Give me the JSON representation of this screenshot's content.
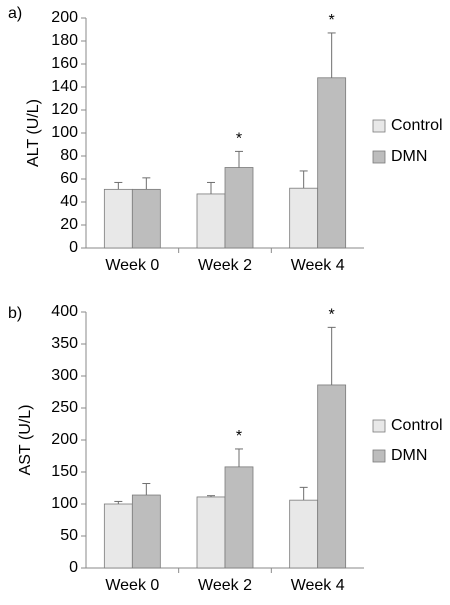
{
  "chart_data": [
    {
      "panel_label": "a)",
      "type": "bar",
      "categories": [
        "Week 0",
        "Week 2",
        "Week 4"
      ],
      "series": [
        {
          "name": "Control",
          "values": [
            51,
            47,
            52
          ],
          "errors": [
            6,
            10,
            15
          ],
          "color": "#e8e8e8"
        },
        {
          "name": "DMN",
          "values": [
            51,
            70,
            148
          ],
          "errors": [
            10,
            14,
            39
          ],
          "color": "#bdbdbd"
        }
      ],
      "significance": [
        {
          "category": "Week 2",
          "series": "DMN",
          "mark": "*"
        },
        {
          "category": "Week 4",
          "series": "DMN",
          "mark": "*"
        }
      ],
      "ylabel": "ALT (U/L)",
      "ylim": [
        0,
        200
      ],
      "yticks": [
        0,
        20,
        40,
        60,
        80,
        100,
        120,
        140,
        160,
        180,
        200
      ],
      "grid": false,
      "legend": "right"
    },
    {
      "panel_label": "b)",
      "type": "bar",
      "categories": [
        "Week 0",
        "Week 2",
        "Week 4"
      ],
      "series": [
        {
          "name": "Control",
          "values": [
            100,
            111,
            106
          ],
          "errors": [
            4,
            2,
            20
          ],
          "color": "#e8e8e8"
        },
        {
          "name": "DMN",
          "values": [
            114,
            158,
            286
          ],
          "errors": [
            18,
            28,
            90
          ],
          "color": "#bdbdbd"
        }
      ],
      "significance": [
        {
          "category": "Week 2",
          "series": "DMN",
          "mark": "*"
        },
        {
          "category": "Week 4",
          "series": "DMN",
          "mark": "*"
        }
      ],
      "ylabel": "AST (U/L)",
      "ylim": [
        0,
        400
      ],
      "yticks": [
        0,
        50,
        100,
        150,
        200,
        250,
        300,
        350,
        400
      ],
      "grid": false,
      "legend": "right"
    }
  ]
}
